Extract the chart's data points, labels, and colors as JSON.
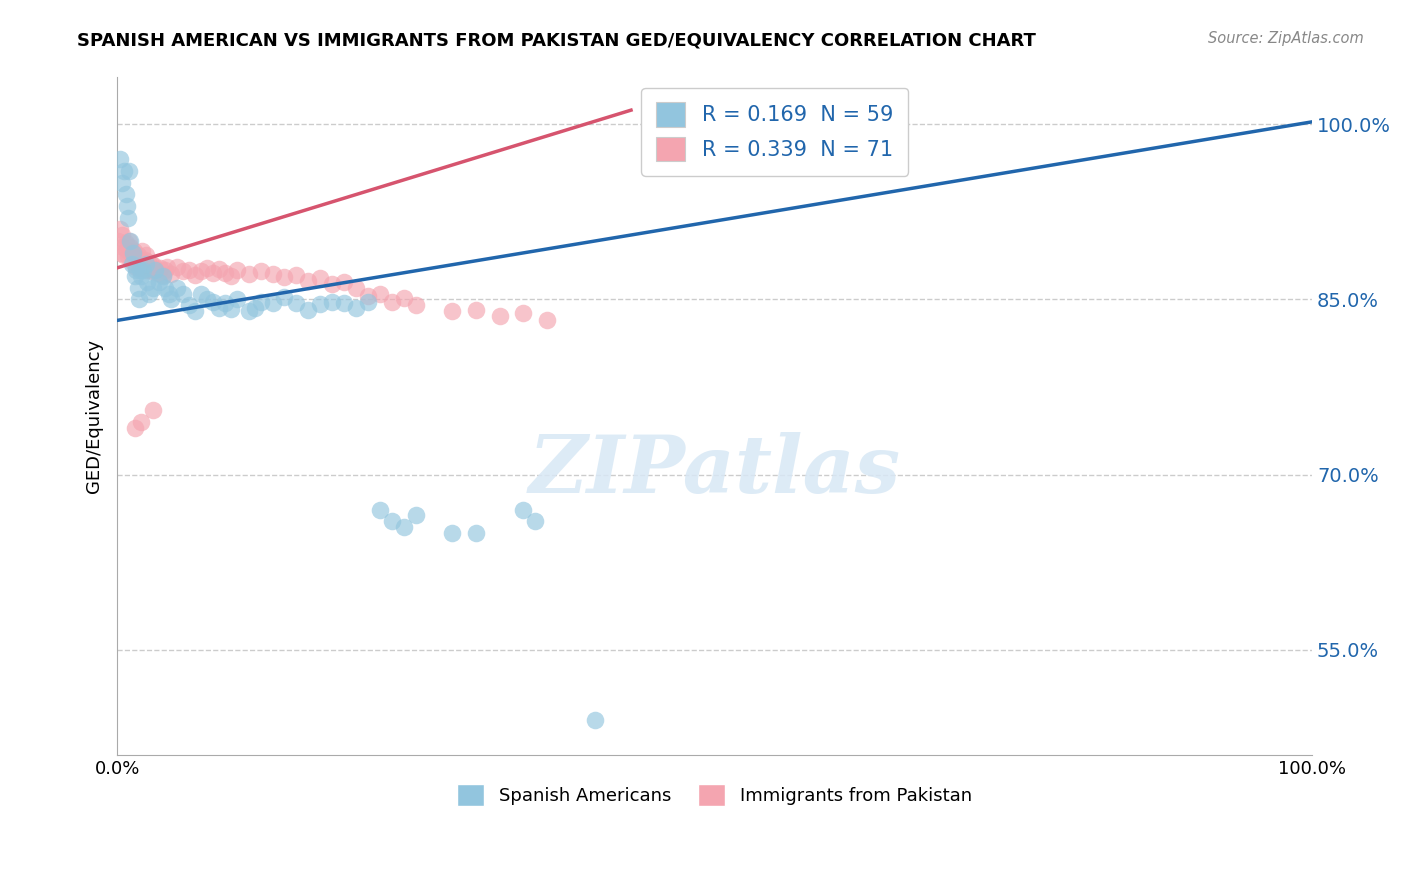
{
  "title": "SPANISH AMERICAN VS IMMIGRANTS FROM PAKISTAN GED/EQUIVALENCY CORRELATION CHART",
  "source": "Source: ZipAtlas.com",
  "ylabel": "GED/Equivalency",
  "xmin": 0.0,
  "xmax": 1.0,
  "ymin": 0.46,
  "ymax": 1.04,
  "yticks": [
    0.55,
    0.7,
    0.85,
    1.0
  ],
  "ytick_labels": [
    "55.0%",
    "70.0%",
    "85.0%",
    "100.0%"
  ],
  "xtick_positions": [
    0.0,
    0.25,
    0.5,
    0.75,
    1.0
  ],
  "xtick_labels": [
    "0.0%",
    "",
    "",
    "",
    "100.0%"
  ],
  "blue_R": 0.169,
  "blue_N": 59,
  "pink_R": 0.339,
  "pink_N": 71,
  "blue_line_x": [
    0.0,
    1.0
  ],
  "blue_line_y": [
    0.832,
    1.002
  ],
  "pink_line_x": [
    0.0,
    0.43
  ],
  "pink_line_y": [
    0.877,
    1.012
  ],
  "blue_color": "#92c5de",
  "pink_color": "#f4a5b0",
  "blue_line_color": "#2166ac",
  "pink_line_color": "#d6546e",
  "legend_label_blue": "Spanish Americans",
  "legend_label_pink": "Immigrants from Pakistan",
  "blue_scatter_x": [
    0.002,
    0.004,
    0.006,
    0.007,
    0.008,
    0.009,
    0.01,
    0.011,
    0.012,
    0.013,
    0.015,
    0.016,
    0.017,
    0.018,
    0.019,
    0.02,
    0.022,
    0.024,
    0.025,
    0.027,
    0.03,
    0.032,
    0.035,
    0.038,
    0.04,
    0.043,
    0.045,
    0.05,
    0.055,
    0.06,
    0.065,
    0.07,
    0.075,
    0.08,
    0.085,
    0.09,
    0.095,
    0.1,
    0.11,
    0.115,
    0.12,
    0.13,
    0.14,
    0.15,
    0.16,
    0.17,
    0.18,
    0.19,
    0.2,
    0.21,
    0.22,
    0.23,
    0.24,
    0.25,
    0.28,
    0.3,
    0.34,
    0.35,
    0.4
  ],
  "blue_scatter_y": [
    0.97,
    0.95,
    0.96,
    0.94,
    0.93,
    0.92,
    0.96,
    0.9,
    0.88,
    0.89,
    0.87,
    0.875,
    0.86,
    0.85,
    0.875,
    0.87,
    0.875,
    0.88,
    0.865,
    0.855,
    0.86,
    0.875,
    0.865,
    0.87,
    0.86,
    0.855,
    0.85,
    0.86,
    0.855,
    0.845,
    0.84,
    0.855,
    0.85,
    0.848,
    0.843,
    0.847,
    0.842,
    0.85,
    0.84,
    0.843,
    0.848,
    0.847,
    0.852,
    0.847,
    0.841,
    0.846,
    0.848,
    0.847,
    0.843,
    0.848,
    0.67,
    0.66,
    0.655,
    0.665,
    0.65,
    0.65,
    0.67,
    0.66,
    0.49
  ],
  "pink_scatter_x": [
    0.001,
    0.002,
    0.003,
    0.004,
    0.005,
    0.006,
    0.007,
    0.008,
    0.009,
    0.01,
    0.011,
    0.012,
    0.013,
    0.014,
    0.015,
    0.016,
    0.017,
    0.018,
    0.019,
    0.02,
    0.021,
    0.022,
    0.023,
    0.024,
    0.025,
    0.026,
    0.027,
    0.028,
    0.029,
    0.03,
    0.032,
    0.034,
    0.036,
    0.038,
    0.04,
    0.042,
    0.045,
    0.05,
    0.055,
    0.06,
    0.065,
    0.07,
    0.075,
    0.08,
    0.085,
    0.09,
    0.095,
    0.1,
    0.11,
    0.12,
    0.13,
    0.14,
    0.15,
    0.16,
    0.17,
    0.18,
    0.19,
    0.2,
    0.21,
    0.22,
    0.23,
    0.24,
    0.25,
    0.28,
    0.3,
    0.32,
    0.34,
    0.36,
    0.03,
    0.02,
    0.015
  ],
  "pink_scatter_y": [
    0.9,
    0.91,
    0.89,
    0.905,
    0.895,
    0.888,
    0.898,
    0.892,
    0.887,
    0.9,
    0.895,
    0.888,
    0.882,
    0.891,
    0.885,
    0.878,
    0.888,
    0.883,
    0.877,
    0.884,
    0.891,
    0.878,
    0.884,
    0.888,
    0.875,
    0.882,
    0.876,
    0.88,
    0.874,
    0.879,
    0.876,
    0.873,
    0.877,
    0.871,
    0.875,
    0.878,
    0.872,
    0.878,
    0.874,
    0.875,
    0.871,
    0.874,
    0.877,
    0.873,
    0.876,
    0.873,
    0.87,
    0.875,
    0.872,
    0.874,
    0.872,
    0.869,
    0.871,
    0.866,
    0.868,
    0.863,
    0.865,
    0.86,
    0.853,
    0.855,
    0.848,
    0.851,
    0.845,
    0.84,
    0.841,
    0.836,
    0.838,
    0.832,
    0.755,
    0.745,
    0.74
  ]
}
